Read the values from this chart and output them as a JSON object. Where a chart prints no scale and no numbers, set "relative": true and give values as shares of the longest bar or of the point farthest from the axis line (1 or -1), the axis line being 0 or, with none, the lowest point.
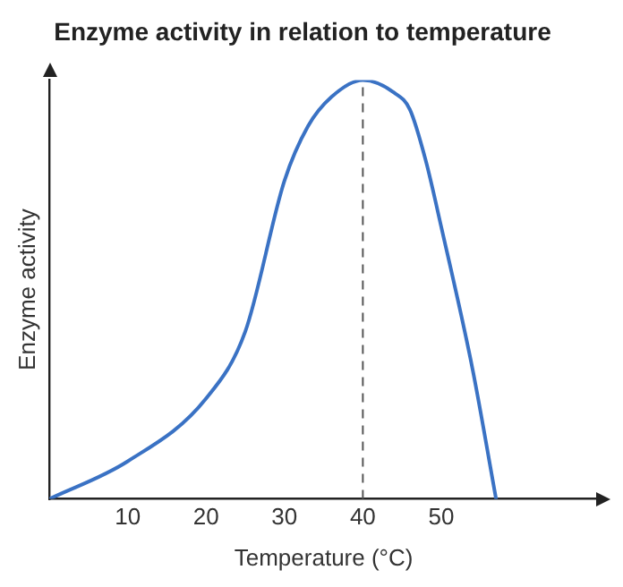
{
  "chart_data": {
    "type": "line",
    "title": "Enzyme activity in relation to temperature",
    "xlabel": "Temperature (°C)",
    "ylabel": "Enzyme activity",
    "relative": true,
    "x": [
      0,
      10,
      20,
      25,
      30,
      33,
      36,
      40,
      44,
      46,
      48,
      50,
      54,
      57
    ],
    "series": [
      {
        "color": "#3a72c4",
        "values": [
          0,
          0.09,
          0.24,
          0.4,
          0.76,
          0.89,
          0.96,
          1,
          0.97,
          0.93,
          0.81,
          0.65,
          0.31,
          0
        ]
      }
    ],
    "xlim": [
      0,
      70
    ],
    "xticks": [
      10,
      20,
      30,
      40,
      50
    ],
    "ref_lines": [
      {
        "axis": "x",
        "value": 40,
        "color": "#555555",
        "line_style": "dashed"
      }
    ],
    "grid": false,
    "legend": false,
    "marker": "none",
    "line_style": "solid"
  }
}
